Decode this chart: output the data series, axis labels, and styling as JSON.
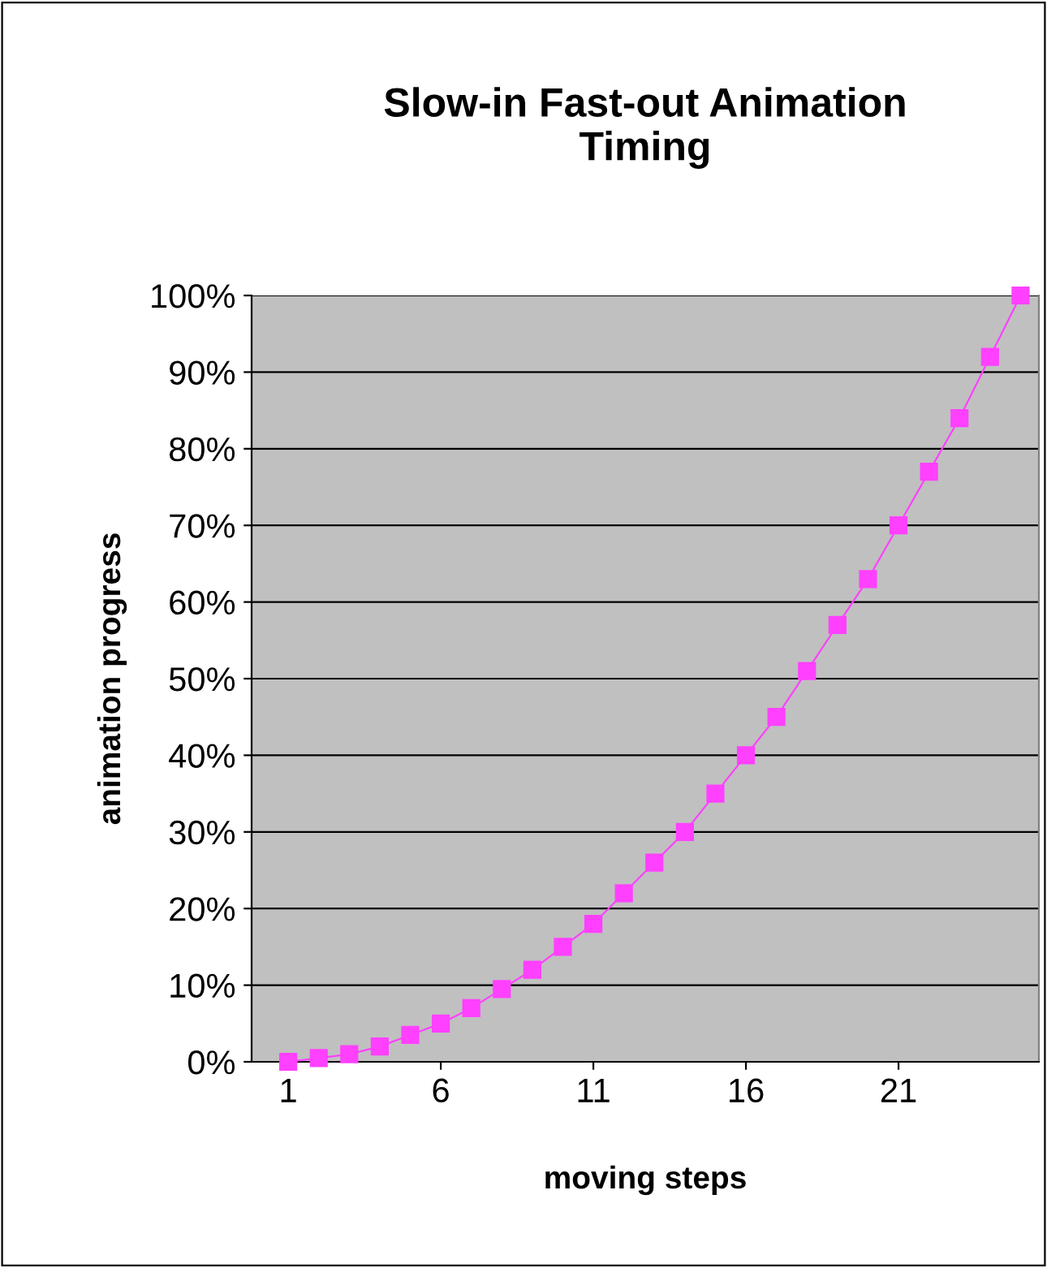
{
  "chart_data": {
    "type": "line",
    "title": "Slow-in Fast-out Animation\nTiming",
    "xlabel": "moving steps",
    "ylabel": "animation progress",
    "x": [
      1,
      2,
      3,
      4,
      5,
      6,
      7,
      8,
      9,
      10,
      11,
      12,
      13,
      14,
      15,
      16,
      17,
      18,
      19,
      20,
      21,
      22,
      23,
      24,
      25
    ],
    "series": [
      {
        "color": "#ff40ff",
        "values": [
          0,
          0.5,
          1,
          2,
          3.5,
          5,
          7,
          9.5,
          12,
          15,
          18,
          22,
          26,
          30,
          35,
          40,
          45,
          51,
          57,
          63,
          70,
          77,
          84,
          92,
          100
        ]
      }
    ],
    "xlim": [
      -0.2,
      25.6
    ],
    "xticks": [
      1,
      6,
      11,
      16,
      21
    ],
    "ylim": [
      0,
      100
    ],
    "yticks": [
      {
        "value": 0,
        "label": "0%"
      },
      {
        "value": 10,
        "label": "10%"
      },
      {
        "value": 20,
        "label": "20%"
      },
      {
        "value": 30,
        "label": "30%"
      },
      {
        "value": 40,
        "label": "40%"
      },
      {
        "value": 50,
        "label": "50%"
      },
      {
        "value": 60,
        "label": "60%"
      },
      {
        "value": 70,
        "label": "70%"
      },
      {
        "value": 80,
        "label": "80%"
      },
      {
        "value": 90,
        "label": "90%"
      },
      {
        "value": 100,
        "label": "100%"
      }
    ],
    "grid": "y",
    "marker": "square",
    "line_style": "solid",
    "legend": false
  }
}
